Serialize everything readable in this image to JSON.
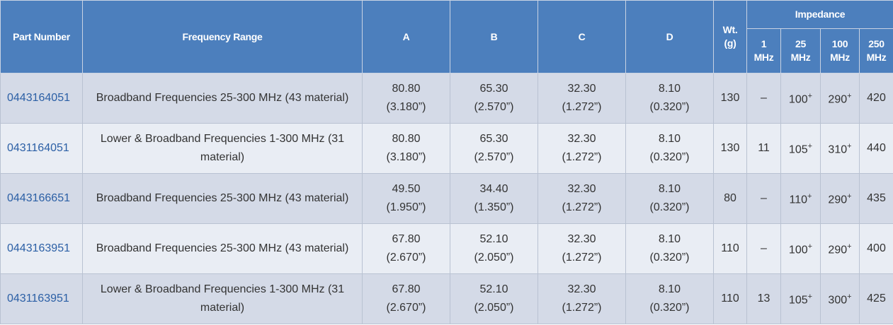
{
  "header": {
    "part_number": "Part Number",
    "frequency_range": "Frequency Range",
    "a": "A",
    "b": "B",
    "c": "C",
    "d": "D",
    "wt": [
      "Wt.",
      "(g)"
    ],
    "impedance": "Impedance",
    "impedance_columns": [
      [
        "1",
        "MHz"
      ],
      [
        "25",
        "MHz"
      ],
      [
        "100",
        "MHz"
      ],
      [
        "250",
        "MHz"
      ]
    ]
  },
  "rows": [
    {
      "part_number": "0443164051",
      "frequency_range": "Broadband Frequencies 25-300 MHz (43 material)",
      "a": [
        "80.80",
        "(3.180”)"
      ],
      "b": [
        "65.30",
        "(2.570”)"
      ],
      "c": [
        "32.30",
        "(1.272”)"
      ],
      "d": [
        "8.10",
        "(0.320”)"
      ],
      "wt": "130",
      "impedance": [
        [
          "–"
        ],
        [
          "100",
          "+"
        ],
        [
          "290",
          "+"
        ],
        [
          "420"
        ]
      ]
    },
    {
      "part_number": "0431164051",
      "frequency_range": "Lower & Broadband Frequencies 1-300 MHz (31 material)",
      "a": [
        "80.80",
        "(3.180”)"
      ],
      "b": [
        "65.30",
        "(2.570”)"
      ],
      "c": [
        "32.30",
        "(1.272”)"
      ],
      "d": [
        "8.10",
        "(0.320”)"
      ],
      "wt": "130",
      "impedance": [
        [
          "11"
        ],
        [
          "105",
          "+"
        ],
        [
          "310",
          "+"
        ],
        [
          "440"
        ]
      ]
    },
    {
      "part_number": "0443166651",
      "frequency_range": "Broadband Frequencies 25-300 MHz (43 material)",
      "a": [
        "49.50",
        "(1.950”)"
      ],
      "b": [
        "34.40",
        "(1.350”)"
      ],
      "c": [
        "32.30",
        "(1.272”)"
      ],
      "d": [
        "8.10",
        "(0.320”)"
      ],
      "wt": "80",
      "impedance": [
        [
          "–"
        ],
        [
          "110",
          "+"
        ],
        [
          "290",
          "+"
        ],
        [
          "435"
        ]
      ]
    },
    {
      "part_number": "0443163951",
      "frequency_range": "Broadband Frequencies 25-300 MHz (43 material)",
      "a": [
        "67.80",
        "(2.670”)"
      ],
      "b": [
        "52.10",
        "(2.050”)"
      ],
      "c": [
        "32.30",
        "(1.272”)"
      ],
      "d": [
        "8.10",
        "(0.320”)"
      ],
      "wt": "110",
      "impedance": [
        [
          "–"
        ],
        [
          "100",
          "+"
        ],
        [
          "290",
          "+"
        ],
        [
          "400"
        ]
      ]
    },
    {
      "part_number": "0431163951",
      "frequency_range": "Lower & Broadband Frequencies 1-300 MHz (31 material)",
      "a": [
        "67.80",
        "(2.670”)"
      ],
      "b": [
        "52.10",
        "(2.050”)"
      ],
      "c": [
        "32.30",
        "(1.272”)"
      ],
      "d": [
        "8.10",
        "(0.320”)"
      ],
      "wt": "110",
      "impedance": [
        [
          "13"
        ],
        [
          "105",
          "+"
        ],
        [
          "300",
          "+"
        ],
        [
          "425"
        ]
      ]
    }
  ]
}
